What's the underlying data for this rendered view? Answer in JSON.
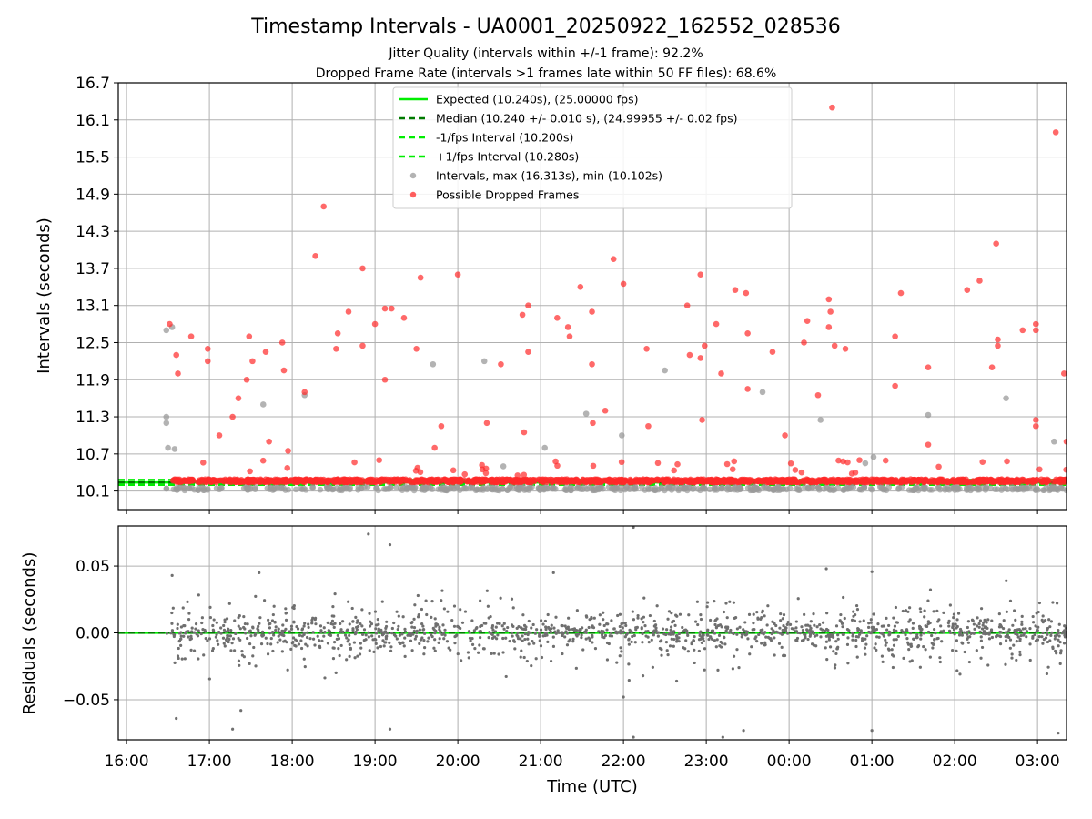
{
  "figure": {
    "title": "Timestamp Intervals - UA0001_20250922_162552_028536",
    "subtitle_1": "Jitter Quality (intervals within +/-1 frame): 92.2%",
    "subtitle_2": "Dropped Frame Rate (intervals >1 frames late within 50 FF files): 68.6%"
  },
  "colors": {
    "expected": "#00ee00",
    "median": "#007a00",
    "bounds": "#00ee00",
    "intervals": "#9a9a9a",
    "dropped": "#ff2a2a",
    "residuals": "#6f6f6f",
    "grid": "#b0b0b0"
  },
  "chart_data": [
    {
      "id": "intervals",
      "type": "scatter",
      "ylabel": "Intervals (seconds)",
      "ylim": [
        9.8,
        16.7
      ],
      "yticks": [
        10.1,
        10.7,
        11.3,
        11.9,
        12.5,
        13.1,
        13.7,
        14.3,
        14.9,
        15.5,
        16.1,
        16.7
      ],
      "ytick_labels": [
        "10.1",
        "10.7",
        "11.3",
        "11.9",
        "12.5",
        "13.1",
        "13.7",
        "14.3",
        "14.9",
        "15.5",
        "16.1",
        "16.7"
      ],
      "xlim_hours": [
        15.9,
        27.35
      ],
      "x_start_hour": 16.48,
      "x_end_hour": 27.35,
      "legend_position": "top-center",
      "expected_interval": 10.24,
      "median_interval": 10.24,
      "lower_bound": 10.2,
      "upper_bound": 10.28,
      "legend": [
        {
          "key": "expected",
          "label": "Expected (10.240s), (25.00000 fps)"
        },
        {
          "key": "median",
          "label": "Median (10.240 +/- 0.010 s), (24.99955 +/- 0.02 fps)"
        },
        {
          "key": "lower",
          "label": "-1/fps Interval (10.200s)"
        },
        {
          "key": "upper",
          "label": "+1/fps Interval (10.280s)"
        },
        {
          "key": "intervals",
          "label": "Intervals, max (16.313s), min (10.102s)"
        },
        {
          "key": "dropped",
          "label": "Possible Dropped Frames"
        }
      ],
      "notable_dropped_points": [
        [
          16.52,
          12.8
        ],
        [
          16.6,
          12.3
        ],
        [
          16.62,
          12.0
        ],
        [
          16.78,
          12.6
        ],
        [
          16.98,
          12.4
        ],
        [
          16.98,
          12.2
        ],
        [
          17.12,
          11.0
        ],
        [
          17.28,
          11.3
        ],
        [
          17.35,
          11.6
        ],
        [
          17.45,
          11.9
        ],
        [
          17.48,
          12.6
        ],
        [
          17.52,
          12.2
        ],
        [
          17.68,
          12.35
        ],
        [
          17.72,
          10.9
        ],
        [
          17.88,
          12.5
        ],
        [
          17.9,
          12.05
        ],
        [
          17.95,
          10.75
        ],
        [
          18.15,
          11.7
        ],
        [
          18.28,
          13.9
        ],
        [
          18.38,
          14.7
        ],
        [
          18.53,
          12.4
        ],
        [
          18.55,
          12.65
        ],
        [
          18.68,
          13.0
        ],
        [
          18.85,
          13.7
        ],
        [
          18.85,
          12.45
        ],
        [
          19.0,
          12.8
        ],
        [
          19.05,
          10.6
        ],
        [
          19.12,
          13.05
        ],
        [
          19.12,
          11.9
        ],
        [
          19.2,
          13.05
        ],
        [
          19.35,
          12.9
        ],
        [
          19.5,
          12.4
        ],
        [
          19.55,
          13.55
        ],
        [
          19.72,
          10.8
        ],
        [
          19.8,
          11.15
        ],
        [
          20.0,
          13.6
        ],
        [
          20.35,
          11.2
        ],
        [
          20.52,
          12.15
        ],
        [
          20.78,
          12.95
        ],
        [
          20.85,
          13.1
        ],
        [
          20.85,
          12.35
        ],
        [
          20.8,
          11.05
        ],
        [
          21.2,
          12.9
        ],
        [
          21.33,
          12.75
        ],
        [
          21.35,
          12.6
        ],
        [
          21.48,
          13.4
        ],
        [
          21.62,
          13.0
        ],
        [
          21.62,
          12.15
        ],
        [
          21.63,
          11.2
        ],
        [
          21.78,
          11.4
        ],
        [
          21.88,
          13.85
        ],
        [
          22.0,
          13.45
        ],
        [
          22.28,
          12.4
        ],
        [
          22.3,
          11.15
        ],
        [
          22.77,
          13.1
        ],
        [
          22.8,
          12.3
        ],
        [
          22.93,
          13.6
        ],
        [
          22.93,
          12.25
        ],
        [
          22.95,
          11.25
        ],
        [
          22.98,
          12.45
        ],
        [
          23.12,
          12.8
        ],
        [
          23.18,
          12.0
        ],
        [
          23.35,
          13.35
        ],
        [
          23.48,
          13.3
        ],
        [
          23.5,
          12.65
        ],
        [
          23.5,
          11.75
        ],
        [
          23.8,
          12.35
        ],
        [
          23.95,
          11.0
        ],
        [
          24.18,
          12.5
        ],
        [
          24.22,
          12.85
        ],
        [
          24.35,
          11.65
        ],
        [
          24.48,
          13.2
        ],
        [
          24.48,
          12.75
        ],
        [
          24.5,
          13.0
        ],
        [
          24.52,
          16.3
        ],
        [
          24.55,
          12.45
        ],
        [
          24.68,
          12.4
        ],
        [
          24.85,
          10.6
        ],
        [
          25.28,
          12.6
        ],
        [
          25.28,
          11.8
        ],
        [
          25.35,
          13.3
        ],
        [
          25.68,
          12.1
        ],
        [
          25.68,
          10.85
        ],
        [
          26.15,
          13.35
        ],
        [
          26.3,
          13.5
        ],
        [
          26.45,
          12.1
        ],
        [
          26.5,
          14.1
        ],
        [
          26.52,
          12.55
        ],
        [
          26.52,
          12.45
        ],
        [
          26.82,
          12.7
        ],
        [
          26.98,
          12.8
        ],
        [
          26.98,
          12.7
        ],
        [
          26.98,
          11.25
        ],
        [
          26.98,
          11.15
        ],
        [
          27.22,
          15.9
        ],
        [
          27.32,
          12.0
        ],
        [
          27.35,
          10.9
        ]
      ],
      "notable_gray_points": [
        [
          16.48,
          12.7
        ],
        [
          16.55,
          12.75
        ],
        [
          16.48,
          11.3
        ],
        [
          16.48,
          11.2
        ],
        [
          16.5,
          10.8
        ],
        [
          16.58,
          10.78
        ],
        [
          17.65,
          11.5
        ],
        [
          18.15,
          11.65
        ],
        [
          19.7,
          12.15
        ],
        [
          20.32,
          12.2
        ],
        [
          20.55,
          10.5
        ],
        [
          21.05,
          10.8
        ],
        [
          21.55,
          11.35
        ],
        [
          21.98,
          11.0
        ],
        [
          22.5,
          12.05
        ],
        [
          23.68,
          11.7
        ],
        [
          24.38,
          11.25
        ],
        [
          24.92,
          10.55
        ],
        [
          25.02,
          10.65
        ],
        [
          25.68,
          11.33
        ],
        [
          26.62,
          11.6
        ],
        [
          27.2,
          10.9
        ]
      ]
    },
    {
      "id": "residuals",
      "type": "scatter",
      "ylabel": "Residuals (seconds)",
      "xlabel": "Time (UTC)",
      "ylim": [
        -0.08,
        0.08
      ],
      "yticks": [
        0.05,
        0.0,
        -0.05
      ],
      "ytick_labels": [
        "0.05",
        "0.00",
        "−0.05"
      ],
      "xlim_hours": [
        15.9,
        27.35
      ],
      "zero_line": 0.0,
      "x_ticks_hours": [
        16,
        17,
        18,
        19,
        20,
        21,
        22,
        23,
        24,
        25,
        26,
        27
      ],
      "x_tick_labels": [
        "16:00",
        "17:00",
        "18:00",
        "19:00",
        "20:00",
        "21:00",
        "22:00",
        "23:00",
        "00:00",
        "01:00",
        "02:00",
        "03:00"
      ],
      "residual_spread_sd": 0.012,
      "notable_outliers": [
        [
          18.92,
          0.074
        ],
        [
          19.18,
          0.066
        ],
        [
          22.12,
          0.079
        ],
        [
          16.55,
          0.043
        ],
        [
          17.6,
          0.045
        ],
        [
          24.45,
          0.048
        ],
        [
          16.6,
          -0.064
        ],
        [
          17.28,
          -0.072
        ],
        [
          17.38,
          -0.058
        ],
        [
          19.18,
          -0.072
        ],
        [
          22.0,
          -0.048
        ],
        [
          22.12,
          -0.078
        ],
        [
          23.2,
          -0.078
        ],
        [
          23.45,
          -0.073
        ],
        [
          25.0,
          -0.073
        ],
        [
          27.25,
          -0.075
        ]
      ]
    }
  ]
}
